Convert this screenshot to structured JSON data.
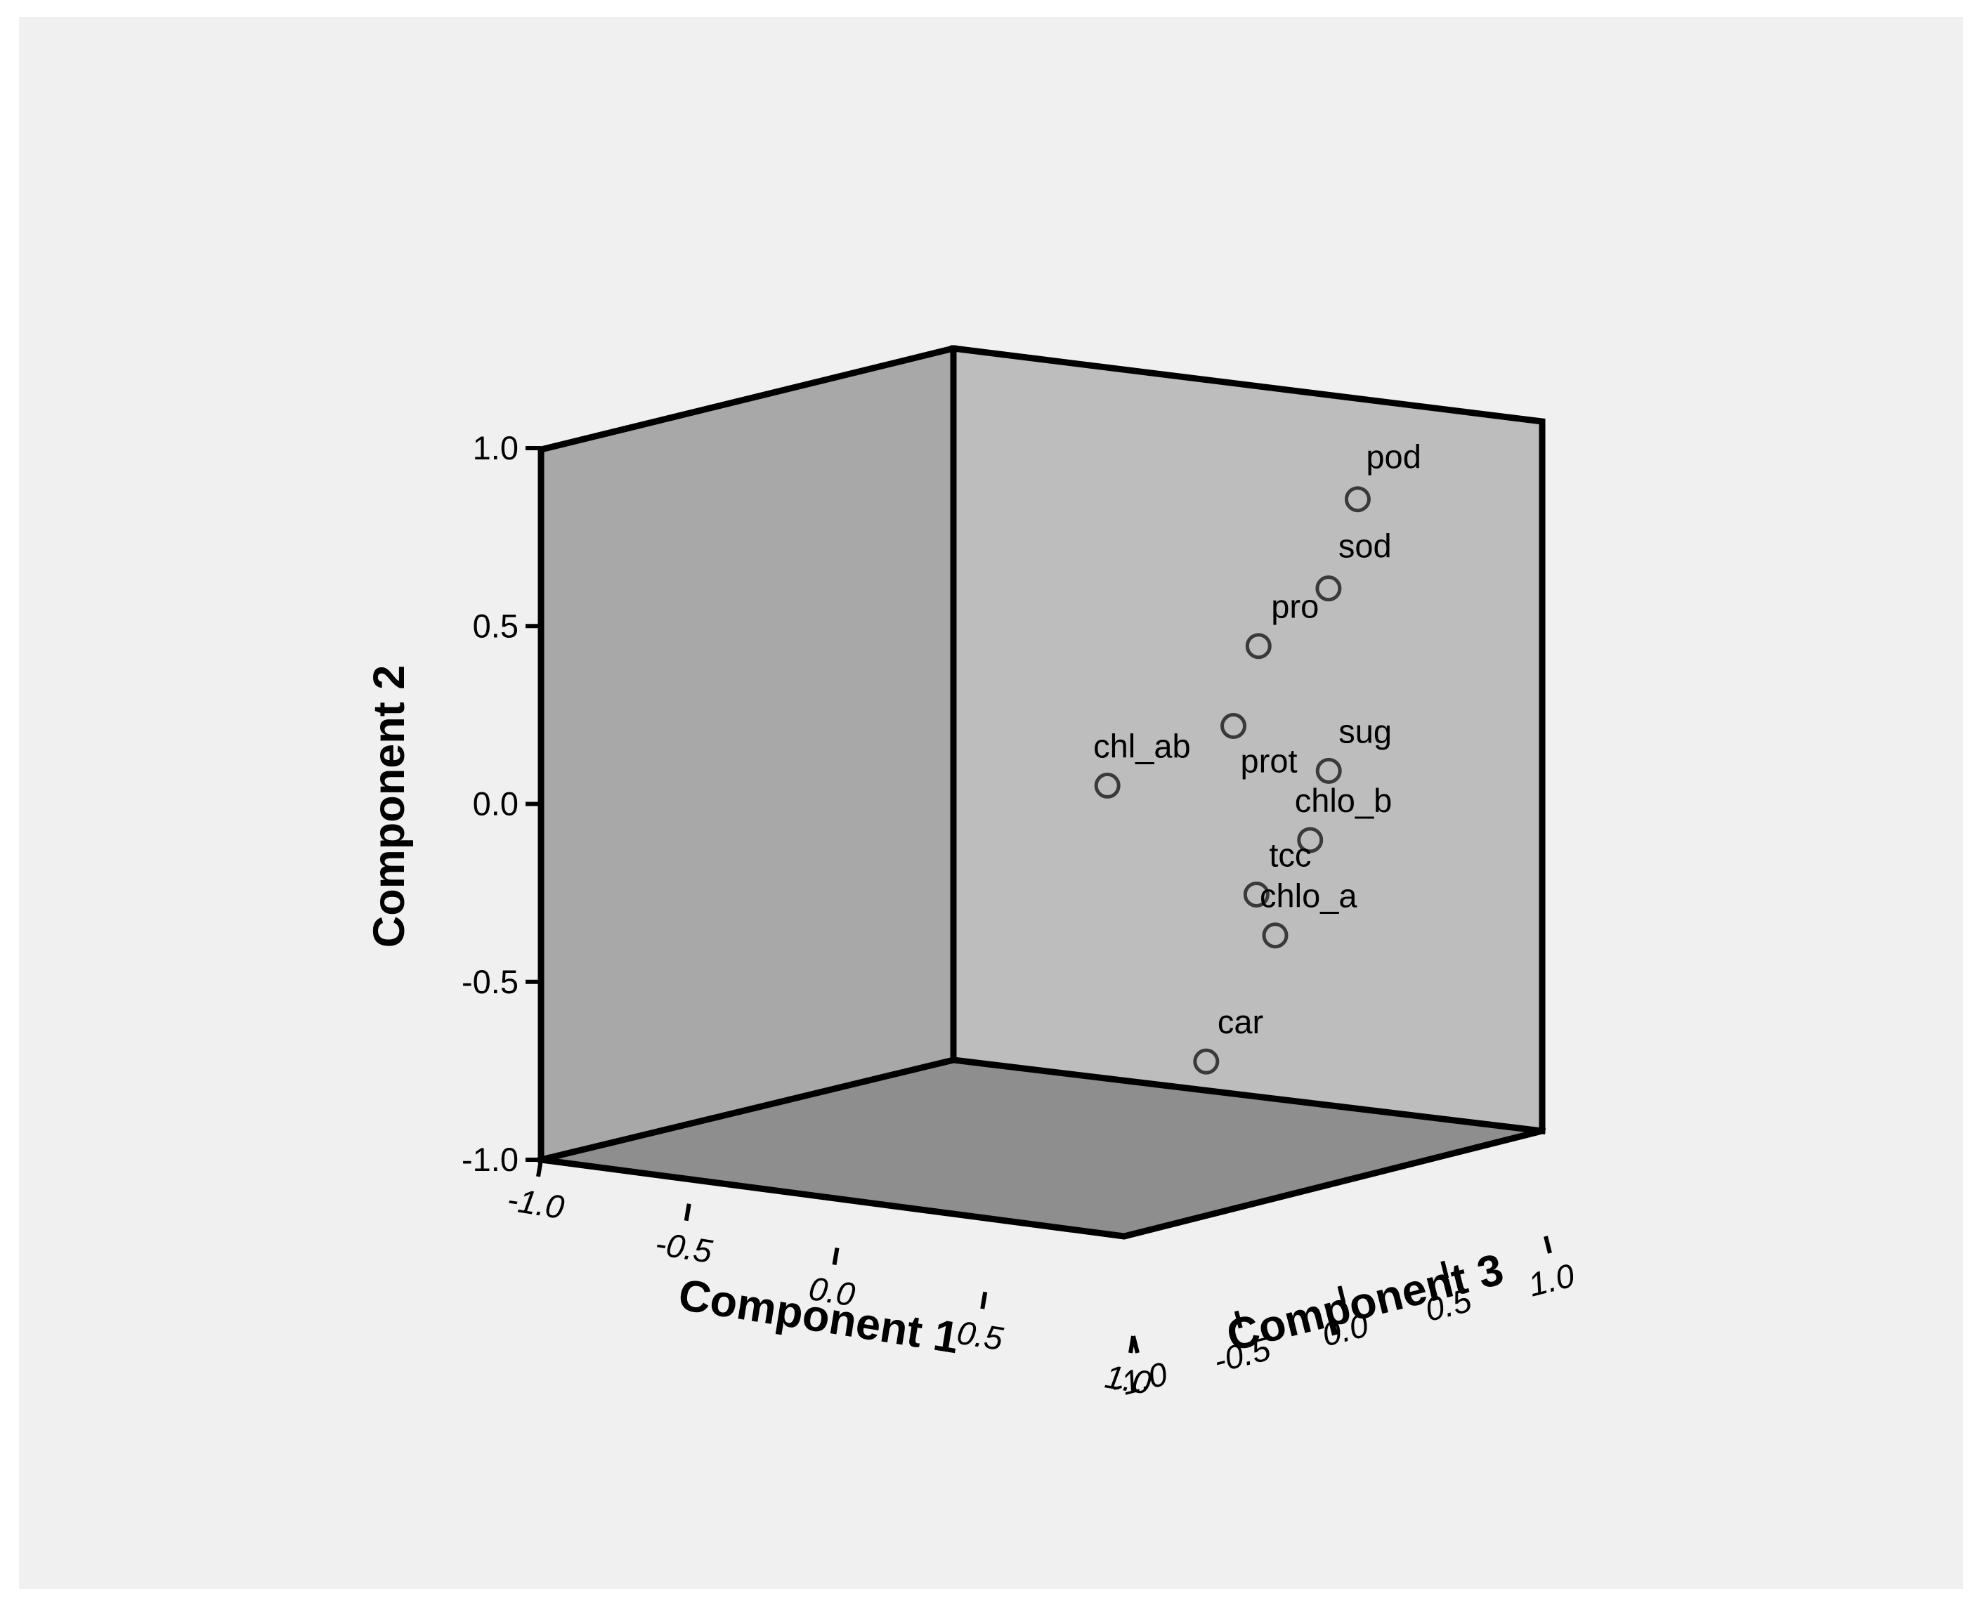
{
  "chart_data": {
    "type": "scatter",
    "dimensions": 3,
    "xlabel": "Component 1",
    "ylabel": "Component 2",
    "zlabel": "Component 3",
    "xlim": [
      -1.0,
      1.0
    ],
    "ylim": [
      -1.0,
      1.0
    ],
    "zlim": [
      -1.0,
      1.0
    ],
    "x_ticks": [
      "-1.0",
      "-0.5",
      "0.0",
      "0.5",
      "1.0"
    ],
    "y_ticks": [
      "-1.0",
      "-0.5",
      "0.0",
      "0.5",
      "1.0"
    ],
    "z_ticks": [
      "1.0",
      "0.5",
      "0.0",
      "-0.5",
      "-1.0"
    ],
    "grid": false,
    "legend": "none",
    "marker": "hollow-circle",
    "points": [
      {
        "label": "pod",
        "x": 0.4,
        "y": 0.93,
        "z": 0.95
      },
      {
        "label": "sod",
        "x": 0.58,
        "y": 0.78,
        "z": 0.55
      },
      {
        "label": "pro",
        "x": 0.1,
        "y": 0.45,
        "z": 0.9
      },
      {
        "label": "prot",
        "x": 0.05,
        "y": 0.22,
        "z": 0.85
      },
      {
        "label": "sug",
        "x": 0.72,
        "y": 0.33,
        "z": 0.35
      },
      {
        "label": "chlo_b",
        "x": 0.88,
        "y": 0.22,
        "z": 0.03
      },
      {
        "label": "tcc",
        "x": 0.65,
        "y": 0.0,
        "z": 0.1
      },
      {
        "label": "chl_ab",
        "x": -0.48,
        "y": -0.1,
        "z": 1.0
      },
      {
        "label": "chlo_a",
        "x": 0.4,
        "y": -0.24,
        "z": 0.55
      },
      {
        "label": "car",
        "x": 0.55,
        "y": -0.48,
        "z": 0.0
      }
    ]
  },
  "colors": {
    "page_background": "#f0f0f0",
    "border": "#ffffff",
    "left_wall": "#a8a8a8",
    "back_wall": "#bdbdbd",
    "floor": "#8e8e8e",
    "edges": "#000000",
    "marker_stroke": "#3a3a3a"
  }
}
